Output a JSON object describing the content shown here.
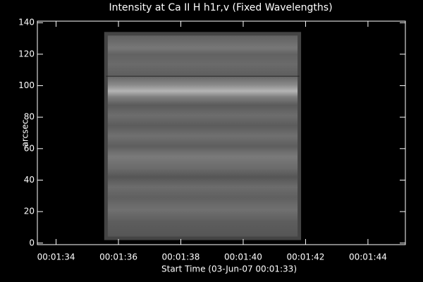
{
  "chart_data": {
    "type": "image",
    "title": "Intensity at Ca II H h1r,v (Fixed Wavelengths)",
    "x_label": "Start Time (03-Jun-07 00:01:33)",
    "y_label": "arcsec",
    "xlim": [
      33.4,
      45.2
    ],
    "xticks": [
      {
        "value": 34,
        "label": "00:01:34"
      },
      {
        "value": 36,
        "label": "00:01:36"
      },
      {
        "value": 38,
        "label": "00:01:38"
      },
      {
        "value": 40,
        "label": "00:01:40"
      },
      {
        "value": 42,
        "label": "00:01:42"
      },
      {
        "value": 44,
        "label": "00:01:44"
      }
    ],
    "ylim": [
      -1,
      141
    ],
    "yticks": [
      0,
      20,
      40,
      60,
      80,
      100,
      120,
      140
    ],
    "image": {
      "xlim": [
        35.6,
        41.8
      ],
      "ylim": [
        3,
        133
      ]
    },
    "hline": 106
  }
}
